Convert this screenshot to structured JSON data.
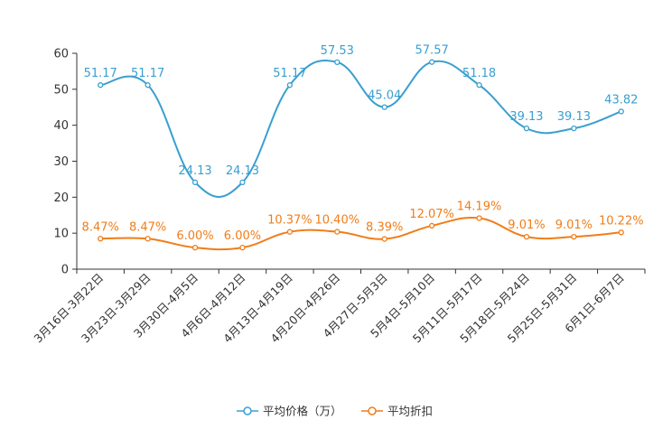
{
  "chart_data": {
    "type": "line",
    "title": "",
    "xlabel": "",
    "ylabel": "",
    "ylim": [
      0,
      60
    ],
    "yticks": [
      0,
      10,
      20,
      30,
      40,
      50,
      60
    ],
    "categories": [
      "3月16日-3月22日",
      "3月23日-3月29日",
      "3月30日-4月5日",
      "4月6日-4月12日",
      "4月13日-4月19日",
      "4月20日-4月26日",
      "4月27日-5月3日",
      "5月4日-5月10日",
      "5月11日-5月17日",
      "5月18日-5月24日",
      "5月25日-5月31日",
      "6月1日-6月7日"
    ],
    "series": [
      {
        "name": "平均价格（万）",
        "color": "#3a9fd0",
        "values": [
          51.17,
          51.17,
          24.13,
          24.13,
          51.17,
          57.53,
          45.04,
          57.57,
          51.18,
          39.13,
          39.13,
          43.82
        ],
        "labels": [
          "51.17",
          "51.17",
          "24.13",
          "24.13",
          "51.17",
          "57.53",
          "45.04",
          "57.57",
          "51.18",
          "39.13",
          "39.13",
          "43.82"
        ]
      },
      {
        "name": "平均折扣",
        "color": "#f07d1a",
        "values": [
          8.47,
          8.47,
          6.0,
          6.0,
          10.37,
          10.4,
          8.39,
          12.07,
          14.19,
          9.01,
          9.01,
          10.22
        ],
        "labels": [
          "8.47%",
          "8.47%",
          "6.00%",
          "6.00%",
          "10.37%",
          "10.40%",
          "8.39%",
          "12.07%",
          "14.19%",
          "9.01%",
          "9.01%",
          "10.22%"
        ]
      }
    ],
    "legend_position": "bottom-center"
  }
}
